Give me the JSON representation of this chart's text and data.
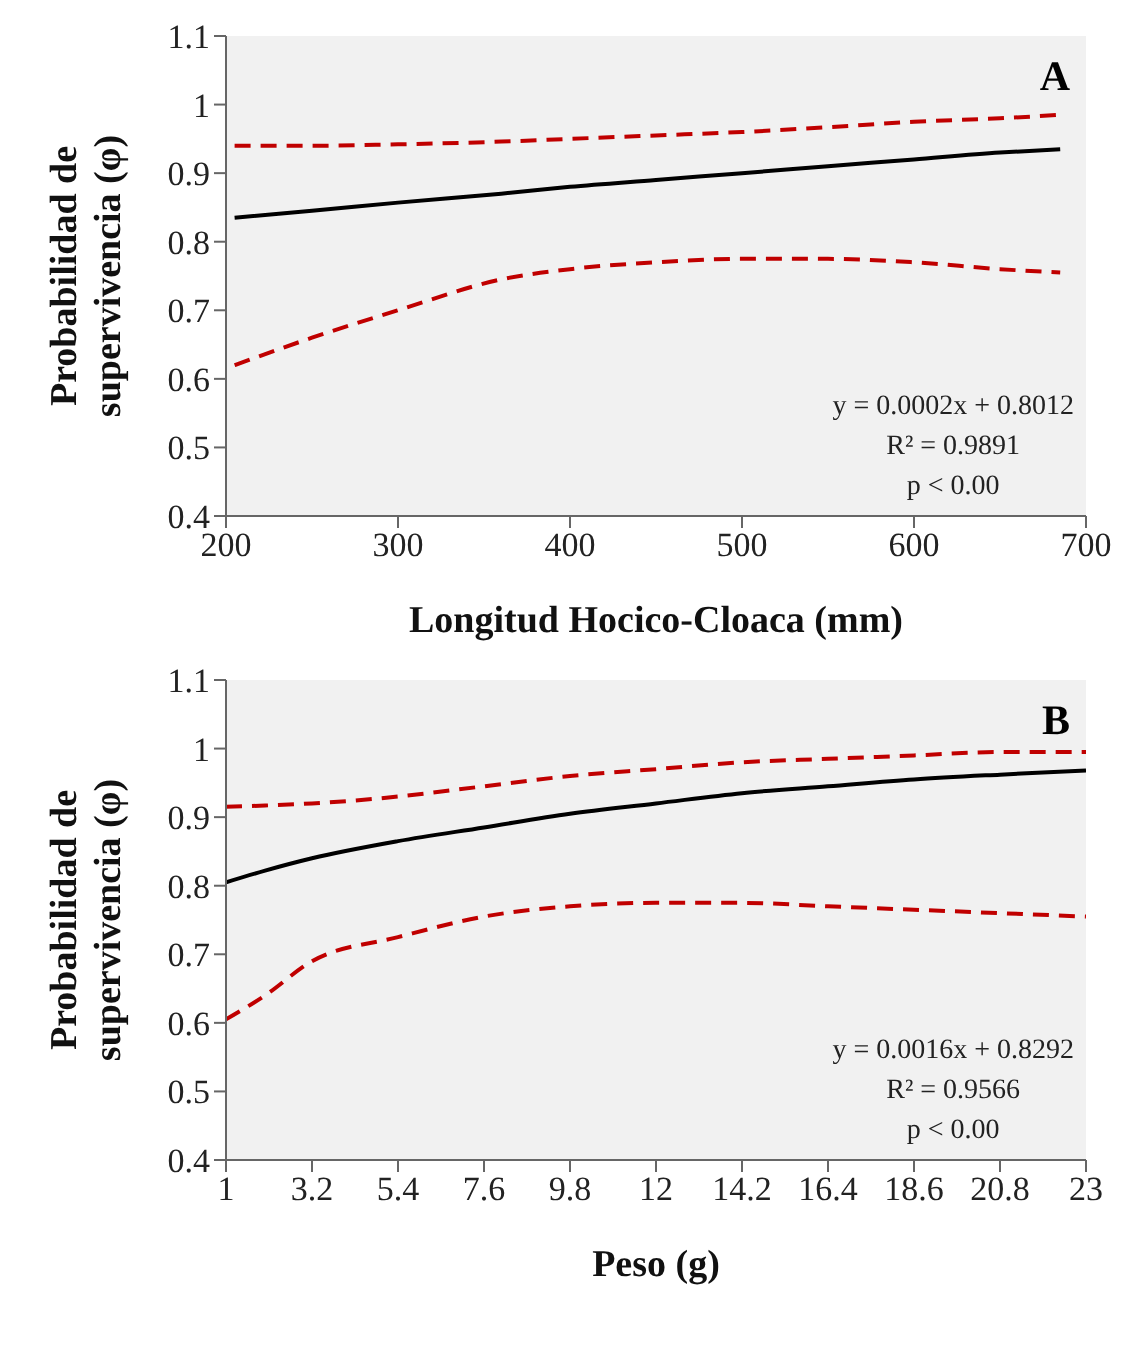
{
  "chart_data": [
    {
      "type": "line",
      "xlabel": "Longitud Hocico-Cloaca (mm)",
      "ylabel": "Probabilidad de supervivencia (φ)",
      "annotations": [
        "A",
        "y = 0.0002x + 0.8012",
        "R² = 0.9891",
        "p < 0.00"
      ],
      "x": [
        205,
        250,
        300,
        360,
        400,
        450,
        500,
        550,
        600,
        650,
        685
      ],
      "xlim": [
        200,
        700
      ],
      "xticks": [
        200,
        300,
        400,
        500,
        600,
        700
      ],
      "ylim": [
        0.4,
        1.1
      ],
      "yticks": [
        0.4,
        0.5,
        0.6,
        0.7,
        0.8,
        0.9,
        1,
        1.1
      ],
      "grid": false,
      "series": [
        {
          "color": "#000000",
          "line_style": "solid",
          "values": [
            0.835,
            0.845,
            0.857,
            0.87,
            0.88,
            0.89,
            0.9,
            0.91,
            0.92,
            0.93,
            0.935
          ]
        },
        {
          "color": "#c00000",
          "line_style": "dashed",
          "values": [
            0.94,
            0.94,
            0.942,
            0.946,
            0.95,
            0.955,
            0.96,
            0.967,
            0.975,
            0.98,
            0.985
          ]
        },
        {
          "color": "#c00000",
          "line_style": "dashed",
          "values": [
            0.62,
            0.66,
            0.7,
            0.745,
            0.76,
            0.77,
            0.775,
            0.775,
            0.77,
            0.76,
            0.755
          ]
        }
      ]
    },
    {
      "type": "line",
      "xlabel": "Peso (g)",
      "ylabel": "Probabilidad de supervivencia (φ)",
      "annotations": [
        "B",
        "y = 0.0016x + 0.8292",
        "R² = 0.9566",
        "p < 0.00"
      ],
      "x": [
        1,
        2,
        3.2,
        5.4,
        7.6,
        9.8,
        12,
        14.2,
        16.4,
        18.6,
        20.8,
        23
      ],
      "xlim": [
        1,
        23
      ],
      "xticks": [
        1,
        3.2,
        5.4,
        7.6,
        9.8,
        12,
        14.2,
        16.4,
        18.6,
        20.8,
        23
      ],
      "ylim": [
        0.4,
        1.1
      ],
      "yticks": [
        0.4,
        0.5,
        0.6,
        0.7,
        0.8,
        0.9,
        1,
        1.1
      ],
      "grid": false,
      "series": [
        {
          "color": "#000000",
          "line_style": "solid",
          "values": [
            0.805,
            0.822,
            0.84,
            0.865,
            0.885,
            0.905,
            0.92,
            0.935,
            0.945,
            0.955,
            0.962,
            0.968
          ]
        },
        {
          "color": "#c00000",
          "line_style": "dashed",
          "values": [
            0.915,
            0.917,
            0.92,
            0.93,
            0.945,
            0.96,
            0.97,
            0.98,
            0.985,
            0.99,
            0.995,
            0.995
          ]
        },
        {
          "color": "#c00000",
          "line_style": "dashed",
          "values": [
            0.605,
            0.64,
            0.69,
            0.725,
            0.755,
            0.77,
            0.775,
            0.775,
            0.77,
            0.765,
            0.76,
            0.755
          ]
        }
      ]
    }
  ]
}
